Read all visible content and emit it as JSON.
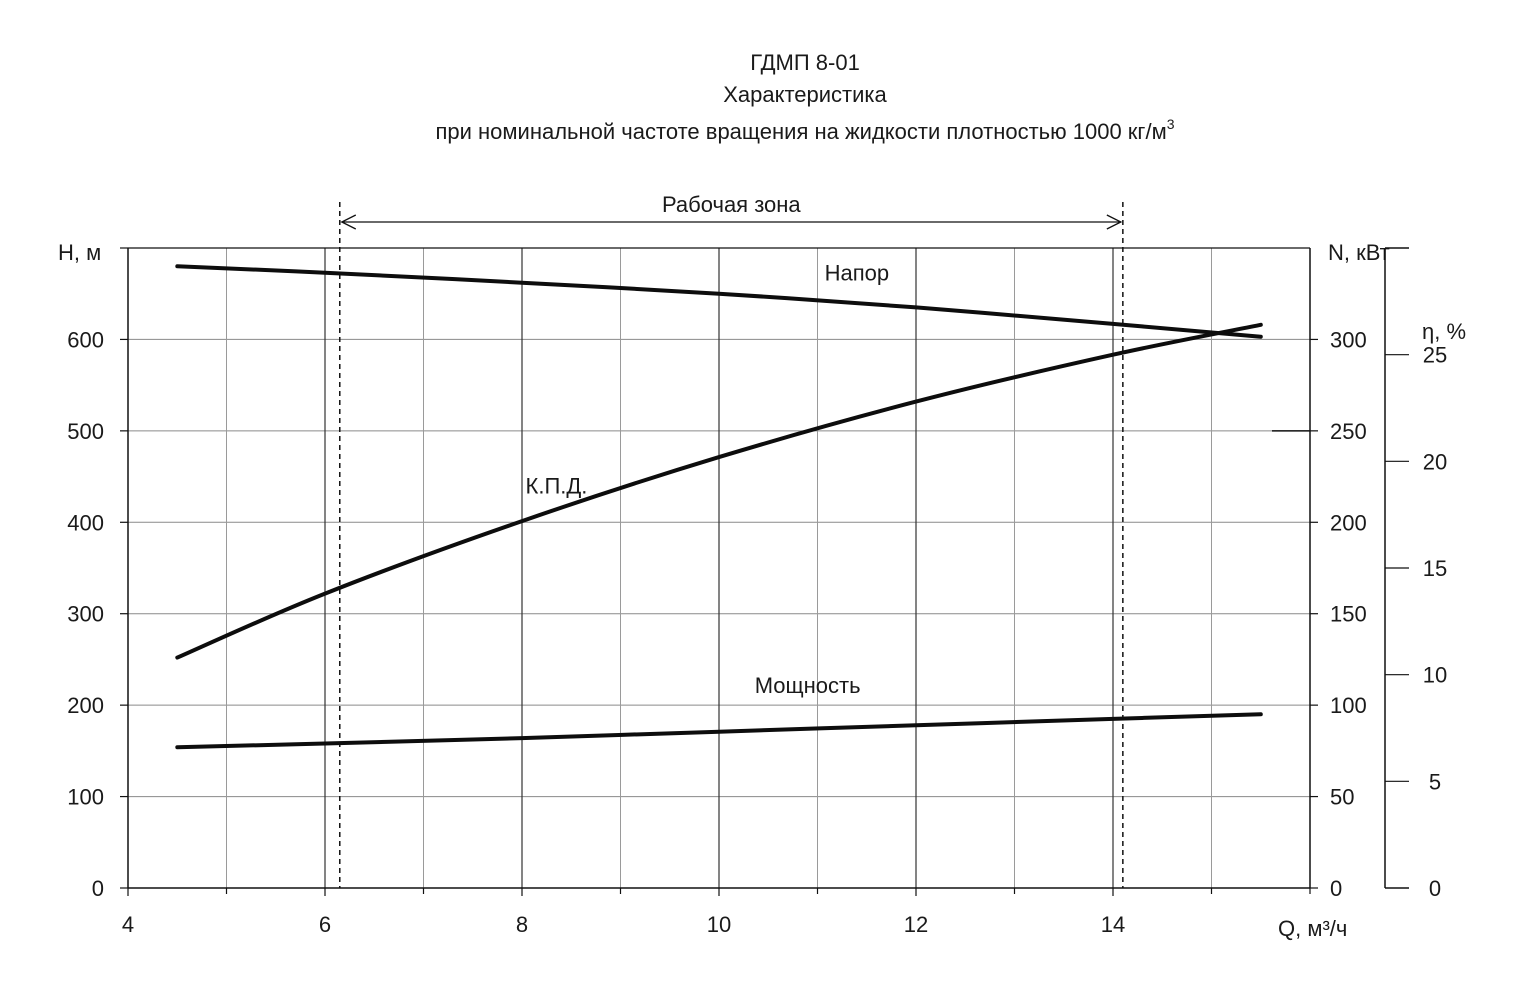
{
  "header": {
    "title": "ГДМП 8-01",
    "subtitle": "Характеристика",
    "caption": "при номинальной  частоте  вращения  на жидкости  плотностью  1000  кг/м",
    "caption_sup": "3"
  },
  "chart_data": {
    "type": "line",
    "x_axis": {
      "label": "Q, м³/ч",
      "range": [
        4,
        16
      ],
      "ticks": [
        4,
        6,
        8,
        10,
        12,
        14
      ],
      "minor_step": 1
    },
    "y_axes": {
      "head": {
        "label": "H, м",
        "range": [
          0,
          700
        ],
        "ticks": [
          0,
          100,
          200,
          300,
          400,
          500,
          600
        ]
      },
      "power": {
        "label": "N, кВт",
        "range": [
          0,
          350
        ],
        "ticks": [
          0,
          50,
          100,
          150,
          200,
          250,
          300
        ]
      },
      "efficiency": {
        "label": "η, %",
        "range": [
          0,
          30
        ],
        "ticks": [
          0,
          5,
          10,
          15,
          20,
          25
        ]
      }
    },
    "grid": true,
    "working_zone": {
      "label": "Рабочая  зона",
      "x_range": [
        6.15,
        14.1
      ]
    },
    "series": [
      {
        "name": "Напор",
        "axis": "head",
        "label_at": [
          11.4,
          673
        ],
        "x": [
          4.5,
          6,
          8,
          10,
          12,
          14,
          15.5
        ],
        "y": [
          680,
          673,
          662,
          650,
          635,
          617,
          603
        ]
      },
      {
        "name": "К.П.Д.",
        "axis": "efficiency",
        "label_at": [
          8.35,
          440
        ],
        "x": [
          4.5,
          6,
          8,
          10,
          12,
          14,
          15.5
        ],
        "y": [
          10.8,
          13.8,
          17.2,
          20.2,
          22.8,
          25.0,
          26.4
        ]
      },
      {
        "name": "Мощность",
        "axis": "power",
        "label_at": [
          10.9,
          222
        ],
        "x": [
          4.5,
          6,
          8,
          10,
          12,
          14,
          15.5
        ],
        "y": [
          77,
          79,
          82,
          85.5,
          89,
          92.5,
          95
        ]
      }
    ]
  }
}
